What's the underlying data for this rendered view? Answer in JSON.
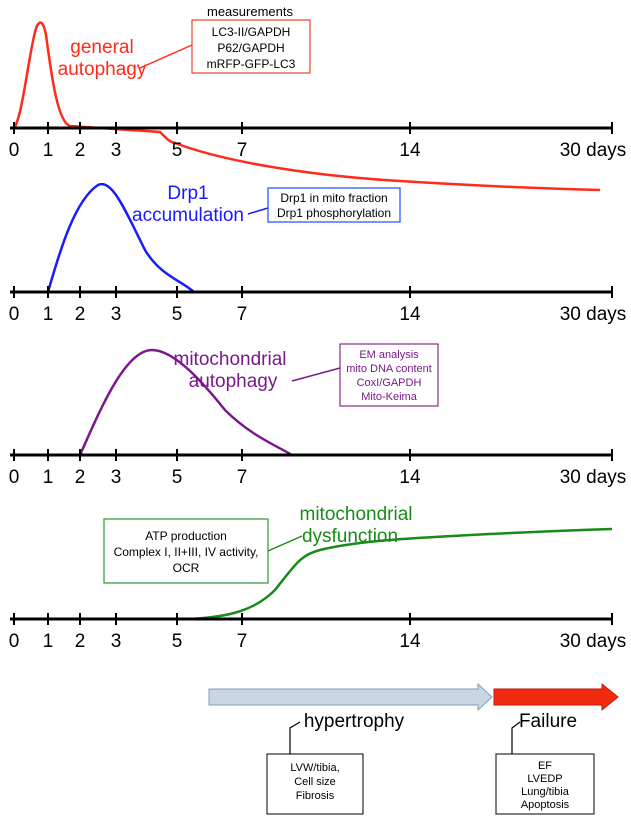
{
  "axis_ticks": [
    {
      "value": 0,
      "label": "0"
    },
    {
      "value": 1,
      "label": "1"
    },
    {
      "value": 2,
      "label": "2"
    },
    {
      "value": 3,
      "label": "3"
    },
    {
      "value": 5,
      "label": "5"
    },
    {
      "value": 7,
      "label": "7"
    },
    {
      "value": 14,
      "label": "14"
    },
    {
      "value": 30,
      "label": "30 days"
    }
  ],
  "panels": [
    {
      "key": "general-autophagy",
      "color": "#ff2a1a",
      "label_lines": [
        "general",
        "autophagy"
      ],
      "box_header": "measurements",
      "box_lines": [
        "LC3-II/GAPDH",
        "P62/GAPDH",
        "mRFP-GFP-LC3"
      ],
      "box_border": "#e8442a",
      "box_text_color": "#000000"
    },
    {
      "key": "drp1-accumulation",
      "color": "#1a1aff",
      "label_lines": [
        "Drp1",
        "accumulation"
      ],
      "box_header": "",
      "box_lines": [
        "Drp1 in mito fraction",
        "Drp1 phosphorylation"
      ],
      "box_border": "#1a4dff",
      "box_text_color": "#000000"
    },
    {
      "key": "mitochondrial-autophagy",
      "color": "#7a1a8a",
      "label_lines": [
        "mitochondrial",
        "autophagy"
      ],
      "box_header": "",
      "box_lines": [
        "EM analysis",
        "mito DNA content",
        "CoxI/GAPDH",
        "Mito-Keima"
      ],
      "box_border": "#8a2a8a",
      "box_text_color": "#7a1a8a"
    },
    {
      "key": "mitochondrial-dysfunction",
      "color": "#1a8a1a",
      "label_lines": [
        "mitochondrial",
        "dysfunction"
      ],
      "box_header": "",
      "box_lines": [
        "ATP production",
        "Complex I, II+III, IV activity,",
        "OCR"
      ],
      "box_border": "#2a9a2a",
      "box_text_color": "#000000"
    }
  ],
  "phases": [
    {
      "key": "hypertrophy",
      "label": "hypertrophy",
      "arrow_color": "#c9d6e3",
      "arrow_border": "#7f9fbf",
      "box_lines": [
        "LVW/tibia,",
        "Cell size",
        "Fibrosis"
      ]
    },
    {
      "key": "failure",
      "label": "Failure",
      "arrow_color": "#f22a10",
      "arrow_border": "#c01a08",
      "box_lines": [
        "EF",
        "LVEDP",
        "Lung/tibia",
        "Apoptosis"
      ]
    }
  ]
}
